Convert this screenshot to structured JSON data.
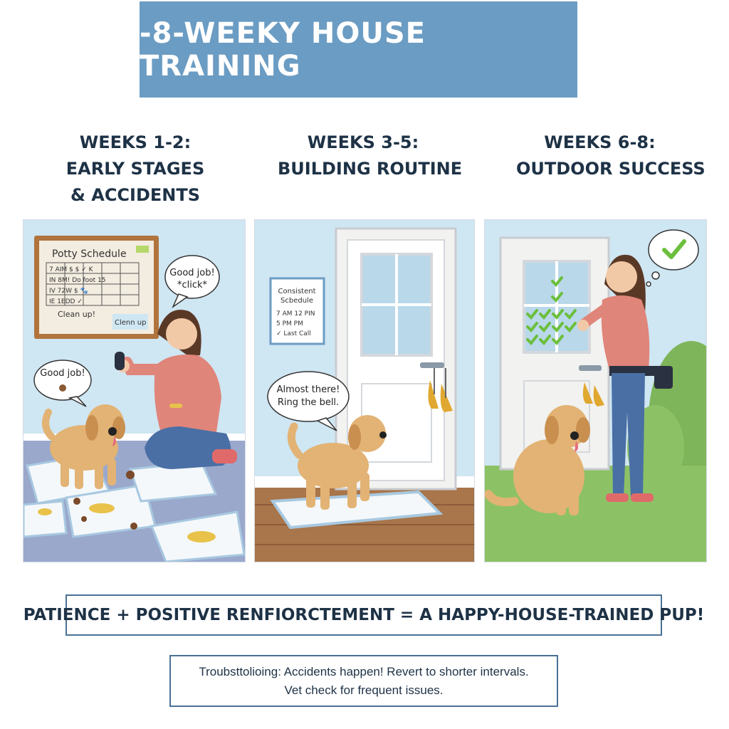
{
  "title": "-8-WEEKY HOUSE TRAINING",
  "stages": [
    {
      "heading_lines": [
        "WEEKS 1-2:",
        "EARLY STAGES",
        "& ACCIDENTS"
      ]
    },
    {
      "heading_lines": [
        "WEEKS 3-5:",
        "BUILDING ROUTINE"
      ]
    },
    {
      "heading_lines": [
        "WEEKS 6-8:",
        "OUTDOOR SUCCESS"
      ]
    }
  ],
  "panel1": {
    "board_title": "Potty Schedule",
    "board_rows": [
      "7 AIM $ $ ✓ K",
      "IN 8M! Do foot 15",
      "IV 72W $ 🐾",
      "IE 1EDD ✓"
    ],
    "note_left": "Clean up!",
    "note_right": "Clenn up",
    "bubble_owner_line1": "Good job!",
    "bubble_owner_line2": "*click*",
    "bubble_pup": "Good job!"
  },
  "panel2": {
    "card_title_line1": "Consistent",
    "card_title_line2": "Scbedule",
    "card_line1": "7 AM   12 PIN",
    "card_line2": "5 PM   PM",
    "card_line3": "✓ Last Call",
    "bubble_line1": "Almost there!",
    "bubble_line2": "Ring the bell."
  },
  "slogan": "PATIENCE + POSITIVE RENFIORCTEMENT = A HAPPY-HOUSE-TRAINED PUP!",
  "troubleshooting_line1": "Troubsttolioing: Accidents happen! Revert to shorter intervals.",
  "troubleshooting_line2": "Vet check for frequent issues.",
  "colors": {
    "banner": "#6b9cc3",
    "wall": "#cfe6f3",
    "accent_border": "#4a7196",
    "dog": "#e2b374",
    "shirt": "#e0857a"
  }
}
